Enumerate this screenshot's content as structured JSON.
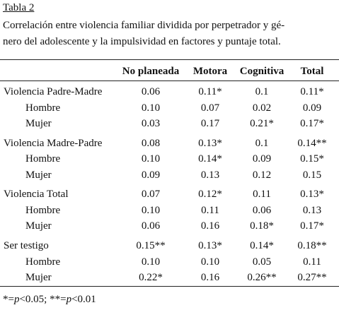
{
  "header": {
    "title": "Tabla 2",
    "caption": [
      "Correlación entre violencia familiar dividida por perpetrador y gé-",
      "nero del adolescente y la impulsividad en factores y puntaje total."
    ]
  },
  "table": {
    "columns": [
      "No planeada",
      "Motora",
      "Cognitiva",
      "Total"
    ],
    "rows": [
      [
        "Violencia Padre-Madre",
        "0.06",
        "0.11*",
        "0.1",
        "0.11*"
      ],
      [
        "Hombre",
        "0.10",
        "0.07",
        "0.02",
        "0.09"
      ],
      [
        "Mujer",
        "0.03",
        "0.17",
        "0.21*",
        "0.17*"
      ],
      [
        "Violencia Madre-Padre",
        "0.08",
        "0.13*",
        "0.1",
        "0.14**"
      ],
      [
        "Hombre",
        "0.10",
        "0.14*",
        "0.09",
        "0.15*"
      ],
      [
        "Mujer",
        "0.09",
        "0.13",
        "0.12",
        "0.15"
      ],
      [
        "Violencia Total",
        "0.07",
        "0.12*",
        "0.11",
        "0.13*"
      ],
      [
        "Hombre",
        "0.10",
        "0.11",
        "0.06",
        "0.13"
      ],
      [
        "Mujer",
        "0.06",
        "0.16",
        "0.18*",
        "0.17*"
      ],
      [
        "Ser testigo",
        "0.15**",
        "0.13*",
        "0.14*",
        "0.18**"
      ],
      [
        "Hombre",
        "0.10",
        "0.10",
        "0.05",
        "0.11"
      ],
      [
        "Mujer",
        "0.22*",
        "0.16",
        "0.26**",
        "0.27**"
      ]
    ]
  },
  "footnote": [
    "*=",
    "p",
    "<0.05; **=",
    "p",
    "<0.01"
  ]
}
